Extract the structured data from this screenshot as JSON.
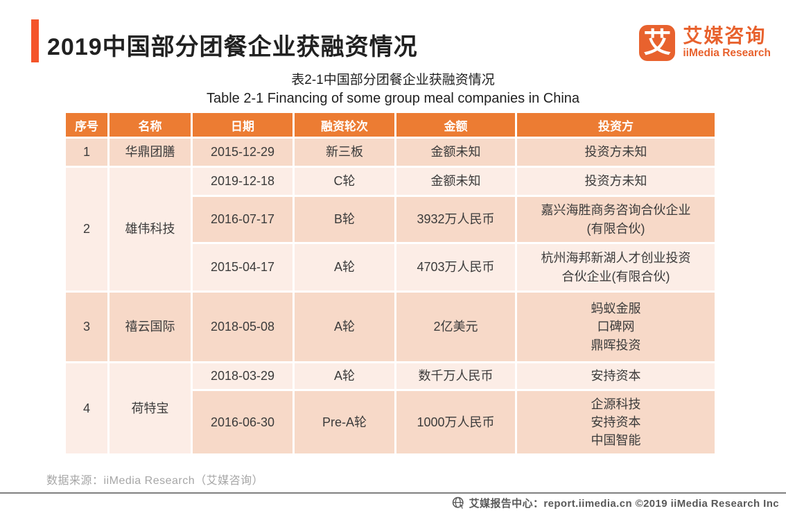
{
  "header": {
    "title": "2019中国部分团餐企业获融资情况"
  },
  "logo": {
    "glyph": "艾",
    "name_cn": "艾媒咨询",
    "name_en": "iiMedia Research"
  },
  "captions": {
    "cn": "表2-1中国部分团餐企业获融资情况",
    "en": "Table 2-1 Financing of some group meal companies in China"
  },
  "footer": {
    "source_note": "数据来源：iiMedia Research（艾媒咨询）",
    "report_center": "艾媒报告中心：report.iimedia.cn  ©2019  iiMedia Research Inc",
    "globe_icon": "globe-cursor-icon"
  },
  "colors": {
    "accent": "#F4542A",
    "logo_orange": "#E8622E",
    "header_bg": "#EC7C33",
    "row_dark": "#F7D9C8",
    "row_light": "#FCEDE6",
    "body_text": "#3B3B3B",
    "source_text": "#A6A6A6",
    "bottom_text": "#595959"
  },
  "chart_data": {
    "type": "table",
    "columns": [
      "序号",
      "名称",
      "日期",
      "融资轮次",
      "金额",
      "投资方"
    ],
    "groups": [
      {
        "no": "1",
        "name": "华鼎团膳",
        "shade": "dark",
        "rounds": [
          {
            "date": "2015-12-29",
            "round": "新三板",
            "amount": "金额未知",
            "investors": [
              "投资方未知"
            ],
            "shade": "dark"
          }
        ]
      },
      {
        "no": "2",
        "name": "雄伟科技",
        "shade": "light",
        "rounds": [
          {
            "date": "2019-12-18",
            "round": "C轮",
            "amount": "金额未知",
            "investors": [
              "投资方未知"
            ],
            "shade": "light"
          },
          {
            "date": "2016-07-17",
            "round": "B轮",
            "amount": "3932万人民币",
            "investors": [
              "嘉兴海胜商务咨询合伙企业",
              "(有限合伙)"
            ],
            "shade": "dark"
          },
          {
            "date": "2015-04-17",
            "round": "A轮",
            "amount": "4703万人民币",
            "investors": [
              "杭州海邦新湖人才创业投资",
              "合伙企业(有限合伙)"
            ],
            "shade": "light"
          }
        ]
      },
      {
        "no": "3",
        "name": "禧云国际",
        "shade": "dark",
        "rounds": [
          {
            "date": "2018-05-08",
            "round": "A轮",
            "amount": "2亿美元",
            "investors": [
              "蚂蚁金服",
              "口碑网",
              "鼎晖投资"
            ],
            "shade": "dark"
          }
        ]
      },
      {
        "no": "4",
        "name": "荷特宝",
        "shade": "light",
        "rounds": [
          {
            "date": "2018-03-29",
            "round": "A轮",
            "amount": "数千万人民币",
            "investors": [
              "安持资本"
            ],
            "shade": "light"
          },
          {
            "date": "2016-06-30",
            "round": "Pre-A轮",
            "amount": "1000万人民币",
            "investors": [
              "企源科技",
              "安持资本",
              "中国智能"
            ],
            "shade": "dark"
          }
        ]
      }
    ]
  }
}
